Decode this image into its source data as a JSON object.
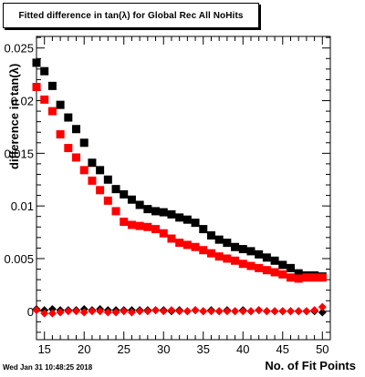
{
  "title": "Fitted difference in tan(λ) for Global Rec All NoHits",
  "timestamp": "Wed Jan 31 10:48:25 2018",
  "chart_data": {
    "type": "scatter",
    "title": "Fitted difference in tan(λ) for Global Rec All NoHits",
    "xlabel": "No. of Fit Points",
    "ylabel": "difference in tan(λ)",
    "xlim": [
      14,
      51
    ],
    "ylim": [
      -0.0027,
      0.0261
    ],
    "xticks": [
      15,
      20,
      25,
      30,
      35,
      40,
      45,
      50
    ],
    "yticks": [
      0,
      0.005,
      0.01,
      0.015,
      0.02,
      0.025
    ],
    "ytick_labels": [
      "0",
      "0.005",
      "0.01",
      "0.015",
      "0.02",
      "0.025"
    ],
    "grid": false,
    "series": [
      {
        "color": "#000000",
        "marker": "square",
        "x": [
          14,
          15,
          16,
          17,
          18,
          19,
          20,
          21,
          22,
          23,
          24,
          25,
          26,
          27,
          28,
          29,
          30,
          31,
          32,
          33,
          34,
          35,
          36,
          37,
          38,
          39,
          40,
          41,
          42,
          43,
          44,
          45,
          46,
          47,
          48,
          49,
          50
        ],
        "values": [
          0.0236,
          0.0228,
          0.0214,
          0.0196,
          0.0184,
          0.0173,
          0.016,
          0.0141,
          0.0134,
          0.0125,
          0.0116,
          0.0111,
          0.0106,
          0.0101,
          0.0097,
          0.0095,
          0.0094,
          0.0092,
          0.0089,
          0.0087,
          0.0084,
          0.0078,
          0.0072,
          0.0068,
          0.0065,
          0.0061,
          0.0059,
          0.0057,
          0.0054,
          0.0051,
          0.0048,
          0.0044,
          0.0041,
          0.0036,
          0.0034,
          0.0034,
          0.0033
        ]
      },
      {
        "color": "#ff0000",
        "marker": "square",
        "x": [
          14,
          15,
          16,
          17,
          18,
          19,
          20,
          21,
          22,
          23,
          24,
          25,
          26,
          27,
          28,
          29,
          30,
          31,
          32,
          33,
          34,
          35,
          36,
          37,
          38,
          39,
          40,
          41,
          42,
          43,
          44,
          45,
          46,
          47,
          48,
          49,
          50
        ],
        "values": [
          0.0213,
          0.0201,
          0.019,
          0.0168,
          0.0155,
          0.0146,
          0.0134,
          0.0124,
          0.0115,
          0.0105,
          0.0095,
          0.0085,
          0.0082,
          0.0081,
          0.008,
          0.0078,
          0.0074,
          0.0069,
          0.0065,
          0.0063,
          0.0061,
          0.0058,
          0.0055,
          0.0052,
          0.005,
          0.0048,
          0.0045,
          0.0043,
          0.0041,
          0.0039,
          0.0037,
          0.0035,
          0.0032,
          0.0031,
          0.0032,
          0.0032,
          0.0032
        ]
      },
      {
        "color": "#000000",
        "marker": "diamond",
        "x": [
          14,
          15,
          16,
          17,
          18,
          19,
          20,
          21,
          22,
          23,
          24,
          25,
          26,
          27,
          28,
          29,
          30,
          31,
          32,
          33,
          34,
          35,
          36,
          37,
          38,
          39,
          40,
          41,
          42,
          43,
          44,
          45,
          46,
          47,
          48,
          49,
          50
        ],
        "values": [
          0.0002,
          0.0001,
          0.0002,
          0.0001,
          0.0001,
          0.0001,
          0.0002,
          0.0001,
          0.0002,
          0.0001,
          0.0001,
          0.0001,
          0.0001,
          0.0001,
          0.0001,
          0.0001,
          0.0001,
          0.0,
          0.0001,
          0.0,
          0.0001,
          0.0,
          0.0001,
          0.0,
          0.0001,
          0.0,
          0.0001,
          0.0,
          0.0001,
          0.0,
          0.0,
          0.0,
          0.0,
          0.0,
          0.0,
          0.0,
          -0.0001
        ]
      },
      {
        "color": "#ff0000",
        "marker": "diamond",
        "x": [
          14,
          15,
          16,
          17,
          18,
          19,
          20,
          21,
          22,
          23,
          24,
          25,
          26,
          27,
          28,
          29,
          30,
          31,
          32,
          33,
          34,
          35,
          36,
          37,
          38,
          39,
          40,
          41,
          42,
          43,
          44,
          45,
          46,
          47,
          48,
          49,
          50
        ],
        "values": [
          0.0001,
          -0.0002,
          -0.0002,
          -0.0001,
          0.0,
          0.0,
          -0.0001,
          0.0,
          0.0,
          -0.0001,
          -0.0001,
          0.0,
          -0.0001,
          0.0,
          0.0,
          0.0001,
          0.0,
          0.0001,
          0.0,
          0.0,
          0.0001,
          0.0,
          0.0,
          0.0,
          0.0,
          0.0,
          0.0,
          0.0,
          0.0001,
          0.0,
          0.0,
          0.0,
          0.0,
          0.0,
          0.0,
          0.0001,
          0.0004
        ]
      }
    ]
  }
}
